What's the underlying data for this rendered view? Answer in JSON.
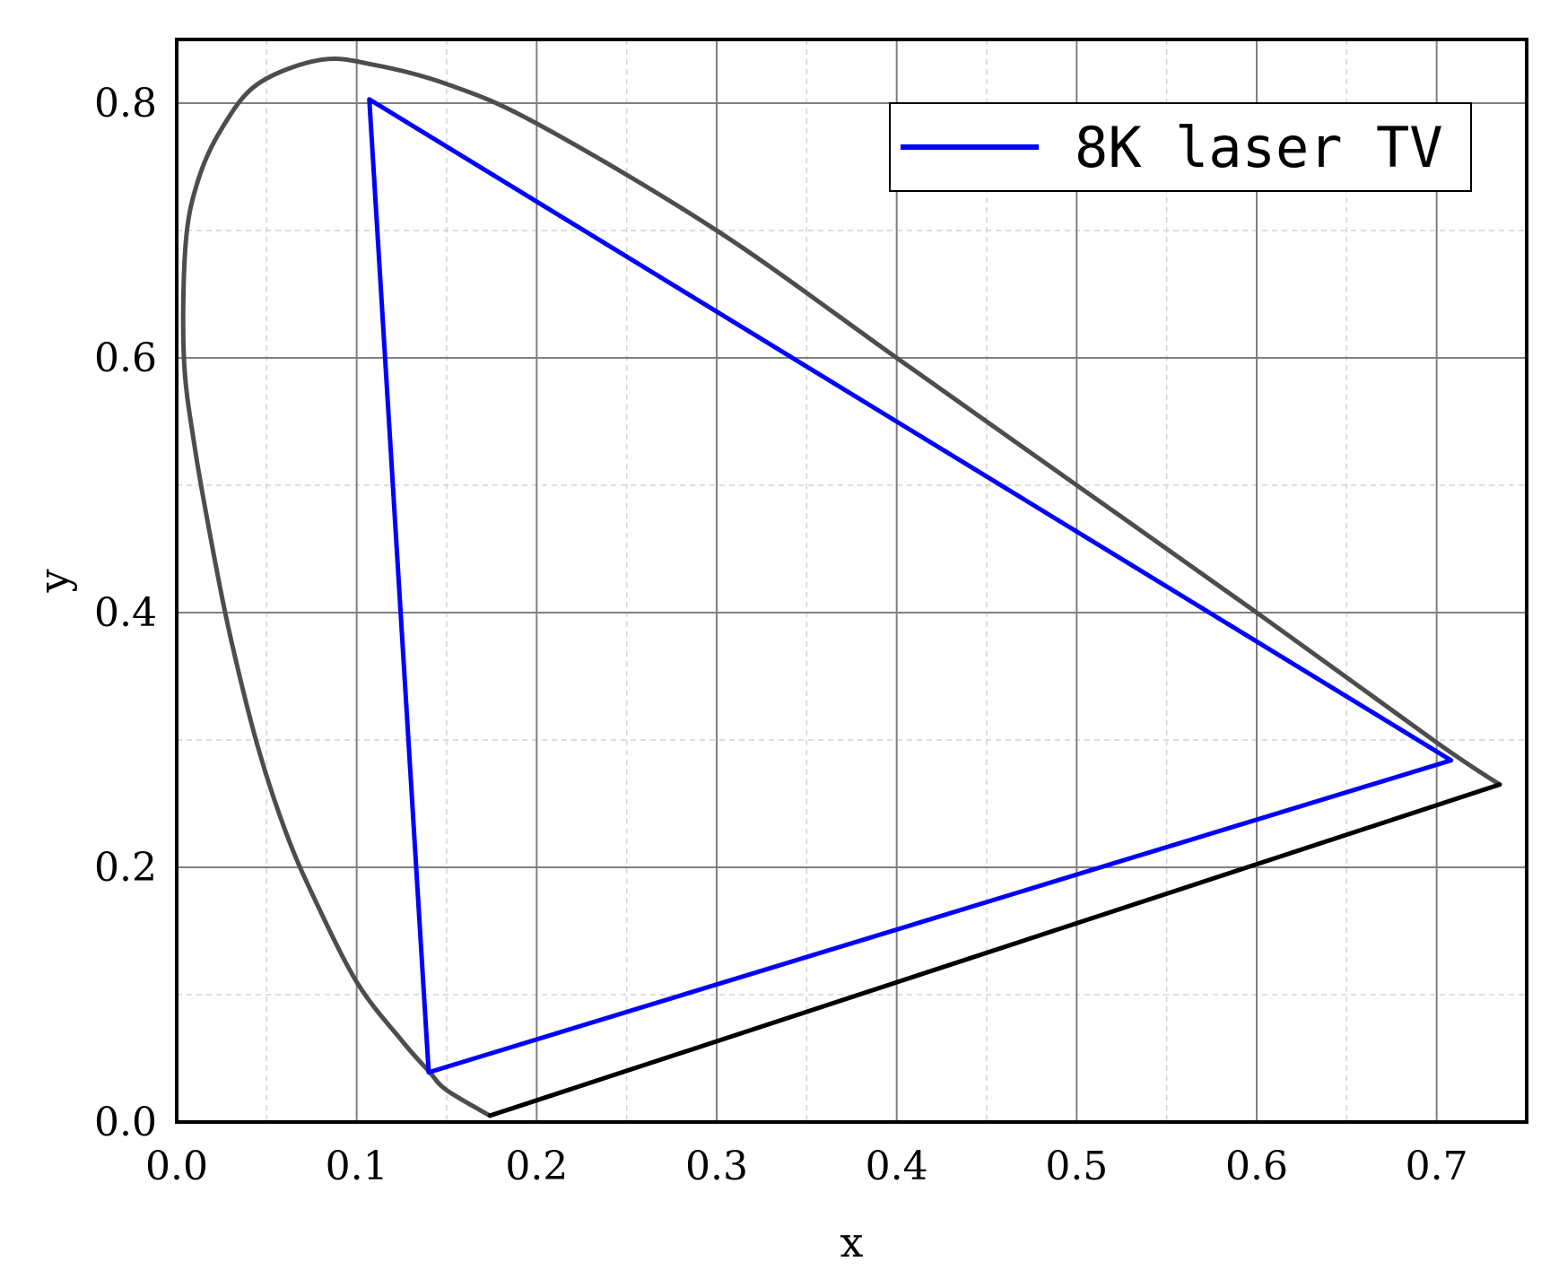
{
  "chart_data": {
    "type": "line",
    "xlabel": "x",
    "ylabel": "y",
    "xlim": [
      0.0,
      0.75
    ],
    "ylim": [
      0.0,
      0.85
    ],
    "xticks": [
      0.0,
      0.1,
      0.2,
      0.3,
      0.4,
      0.5,
      0.6,
      0.7
    ],
    "xtick_labels": [
      "0.0",
      "0.1",
      "0.2",
      "0.3",
      "0.4",
      "0.5",
      "0.6",
      "0.7"
    ],
    "yticks": [
      0.0,
      0.2,
      0.4,
      0.6,
      0.8
    ],
    "ytick_labels": [
      "0.0",
      "0.2",
      "0.4",
      "0.6",
      "0.8"
    ],
    "grid": {
      "major": true,
      "minor": true
    },
    "legend": {
      "position": "top-right",
      "entries": [
        "8K laser TV"
      ]
    },
    "series": [
      {
        "role": "spectral-locus",
        "color": "#4d4d4d",
        "closed": false,
        "points": [
          [
            0.174,
            0.005
          ],
          [
            0.15,
            0.025
          ],
          [
            0.14,
            0.04
          ],
          [
            0.125,
            0.064
          ],
          [
            0.1,
            0.11
          ],
          [
            0.075,
            0.18
          ],
          [
            0.06,
            0.23
          ],
          [
            0.045,
            0.295
          ],
          [
            0.03,
            0.38
          ],
          [
            0.02,
            0.45
          ],
          [
            0.01,
            0.53
          ],
          [
            0.004,
            0.6
          ],
          [
            0.005,
            0.69
          ],
          [
            0.012,
            0.74
          ],
          [
            0.025,
            0.78
          ],
          [
            0.045,
            0.815
          ],
          [
            0.08,
            0.834
          ],
          [
            0.11,
            0.83
          ],
          [
            0.15,
            0.815
          ],
          [
            0.2,
            0.784
          ],
          [
            0.3,
            0.7
          ],
          [
            0.4,
            0.6
          ],
          [
            0.5,
            0.5
          ],
          [
            0.6,
            0.4
          ],
          [
            0.7,
            0.298
          ],
          [
            0.735,
            0.265
          ]
        ]
      },
      {
        "role": "purple-line",
        "color": "#000000",
        "closed": false,
        "points": [
          [
            0.174,
            0.005
          ],
          [
            0.735,
            0.265
          ]
        ]
      },
      {
        "name": "8K laser TV",
        "color": "#0000ff",
        "closed": true,
        "points": [
          [
            0.708,
            0.284
          ],
          [
            0.107,
            0.803
          ],
          [
            0.14,
            0.039
          ]
        ]
      }
    ]
  }
}
